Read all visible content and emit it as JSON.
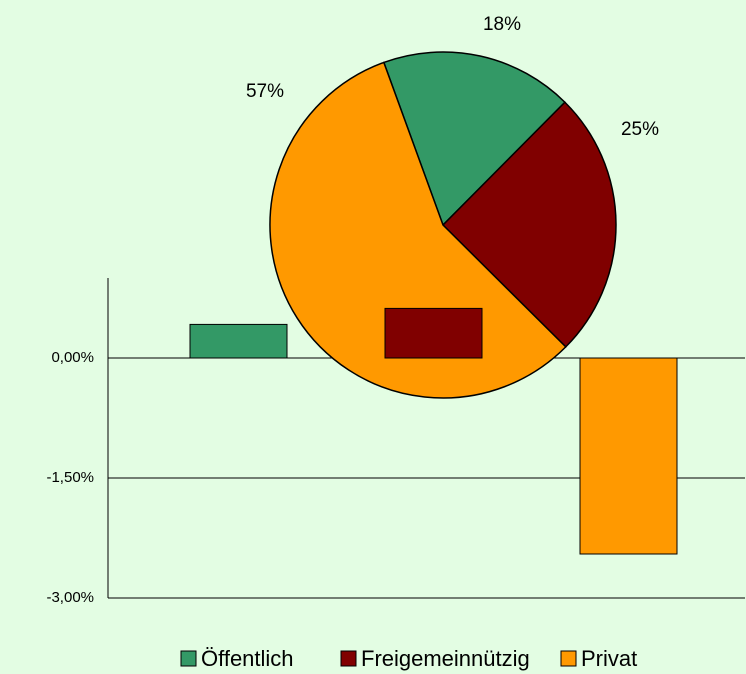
{
  "chart_data": [
    {
      "type": "bar",
      "series": [
        {
          "name": "Öffentlich",
          "color": "#339966",
          "values": [
            0.42
          ]
        },
        {
          "name": "Freigemeinnützig",
          "color": "#800000",
          "values": [
            0.62
          ]
        },
        {
          "name": "Privat",
          "color": "#ff9900",
          "values": [
            -2.45
          ]
        }
      ],
      "ylim": [
        -3,
        1
      ],
      "yticks": [
        {
          "value": 0,
          "label": "0,00%"
        },
        {
          "value": -1.5,
          "label": "-1,50%"
        },
        {
          "value": -3,
          "label": "-3,00%"
        }
      ],
      "grid": true,
      "legend": "bottom"
    },
    {
      "type": "pie",
      "values": [
        18,
        25,
        57
      ],
      "value_labels": [
        "18%",
        "25%",
        "57%"
      ],
      "colors": [
        "#339966",
        "#800000",
        "#ff9900"
      ]
    }
  ]
}
